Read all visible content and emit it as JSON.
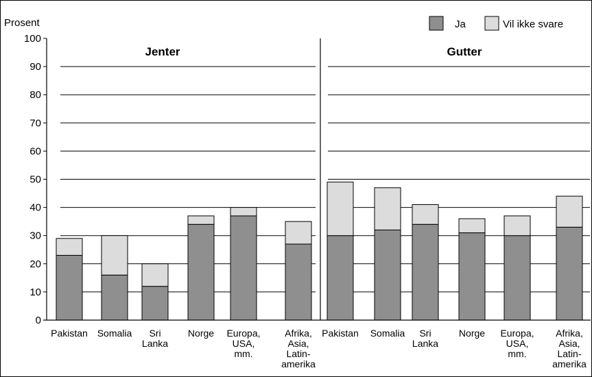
{
  "chart_data": {
    "type": "bar",
    "stacked": true,
    "ylabel": "Prosent",
    "ylim": [
      0,
      100
    ],
    "yticks": [
      0,
      10,
      20,
      30,
      40,
      50,
      60,
      70,
      80,
      90,
      100
    ],
    "grid": true,
    "legend_position": "top-right",
    "legend": [
      {
        "name": "Ja",
        "color": "#8f8f8f"
      },
      {
        "name": "Vil ikke svare",
        "color": "#dcdcdc"
      }
    ],
    "categories": [
      [
        "Pakistan"
      ],
      [
        "Somalia"
      ],
      [
        "Sri",
        "Lanka"
      ],
      [
        "Norge"
      ],
      [
        "Europa,",
        "USA,",
        "mm."
      ],
      [
        "Afrika,",
        "Asia,",
        "Latin-",
        "amerika"
      ]
    ],
    "panels": [
      {
        "title": "Jenter",
        "series": [
          {
            "name": "Ja",
            "values": [
              23,
              16,
              12,
              34,
              37,
              27
            ]
          },
          {
            "name": "Vil ikke svare",
            "values": [
              6,
              14,
              8,
              3,
              3,
              8
            ]
          }
        ]
      },
      {
        "title": "Gutter",
        "series": [
          {
            "name": "Ja",
            "values": [
              30,
              32,
              34,
              31,
              30,
              33
            ]
          },
          {
            "name": "Vil ikke svare",
            "values": [
              19,
              15,
              7,
              5,
              7,
              11
            ]
          }
        ]
      }
    ]
  }
}
